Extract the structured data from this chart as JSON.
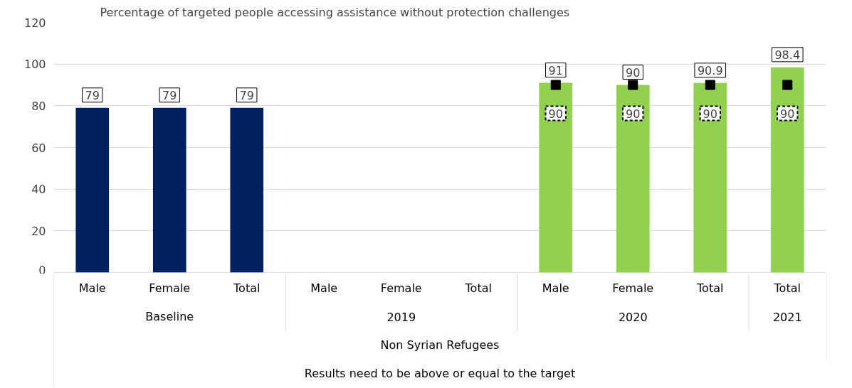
{
  "chart_data": {
    "type": "bar",
    "title": "Percentage of targeted people accessing assistance without protection challenges",
    "categories": [
      "Male",
      "Female",
      "Total",
      "Male",
      "Female",
      "Total",
      "Male",
      "Female",
      "Total",
      "Total"
    ],
    "series": [
      {
        "colors": [
          "#002060",
          "#002060",
          "#002060",
          "#002060",
          "#002060",
          "#002060",
          "#92d050",
          "#92d050",
          "#92d050",
          "#92d050"
        ],
        "values": [
          79,
          79,
          79,
          null,
          null,
          null,
          91,
          90,
          90.9,
          98.4
        ]
      },
      {
        "type": "scatter",
        "marker": "square",
        "color": "#000000",
        "values": [
          null,
          null,
          null,
          null,
          null,
          null,
          90,
          90,
          90,
          90
        ]
      }
    ],
    "annotations": [
      "Baseline",
      "2019",
      "2020",
      "2021",
      "Non Syrian Refugees",
      "Results need to be above or equal to the target"
    ],
    "ylim": [
      0,
      120
    ],
    "yticks": [
      0,
      20,
      40,
      60,
      80,
      100,
      120
    ],
    "grid": "y",
    "data_labels": true
  }
}
